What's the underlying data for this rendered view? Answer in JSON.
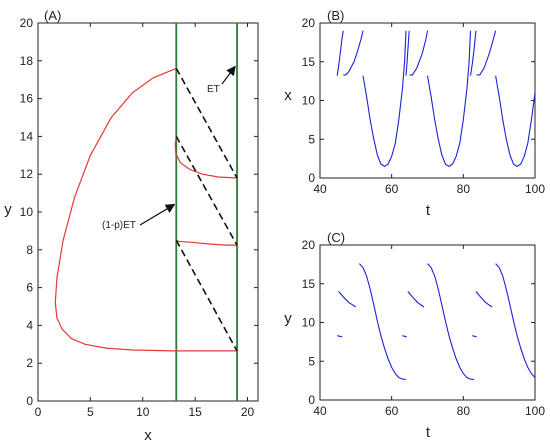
{
  "chart_data": [
    {
      "type": "line",
      "panel": "(A)",
      "xlabel": "x",
      "ylabel": "y",
      "xlim": [
        0,
        21
      ],
      "ylim": [
        0,
        20
      ],
      "xticks": [
        0,
        5,
        10,
        15,
        20
      ],
      "yticks": [
        0,
        2,
        4,
        6,
        8,
        10,
        12,
        14,
        16,
        18,
        20
      ],
      "vertical_lines": [
        {
          "x": 13.2,
          "color": "#2e7d32"
        },
        {
          "x": 19.0,
          "color": "#2e7d32"
        }
      ],
      "series": [
        {
          "color": "#e53935",
          "style": "solid",
          "points": [
            [
              13.2,
              17.6
            ],
            [
              11.0,
              17.1
            ],
            [
              9.0,
              16.3
            ],
            [
              7.0,
              15.0
            ],
            [
              5.0,
              13.0
            ],
            [
              3.5,
              10.8
            ],
            [
              2.4,
              8.5
            ],
            [
              1.8,
              6.5
            ],
            [
              1.65,
              5.2
            ],
            [
              1.8,
              4.4
            ],
            [
              2.3,
              3.8
            ],
            [
              3.2,
              3.3
            ],
            [
              4.5,
              3.0
            ],
            [
              6.5,
              2.8
            ],
            [
              9.0,
              2.7
            ],
            [
              13.0,
              2.65
            ],
            [
              19.0,
              2.65
            ]
          ]
        },
        {
          "color": "#e53935",
          "style": "solid",
          "points": [
            [
              13.2,
              14.0
            ],
            [
              13.1,
              13.6
            ],
            [
              13.15,
              13.1
            ],
            [
              13.6,
              12.6
            ],
            [
              14.5,
              12.25
            ],
            [
              15.7,
              12.0
            ],
            [
              17.2,
              11.85
            ],
            [
              19.0,
              11.8
            ]
          ]
        },
        {
          "color": "#e53935",
          "style": "solid",
          "points": [
            [
              13.2,
              8.5
            ],
            [
              13.4,
              8.45
            ],
            [
              14.5,
              8.4
            ],
            [
              16.5,
              8.3
            ],
            [
              18.0,
              8.25
            ],
            [
              19.0,
              8.25
            ]
          ]
        },
        {
          "color": "#111111",
          "style": "dashed",
          "points": [
            [
              13.2,
              17.6
            ],
            [
              19.0,
              11.8
            ]
          ]
        },
        {
          "color": "#111111",
          "style": "dashed",
          "points": [
            [
              13.2,
              14.0
            ],
            [
              19.0,
              8.25
            ]
          ]
        },
        {
          "color": "#111111",
          "style": "dashed",
          "points": [
            [
              13.2,
              8.5
            ],
            [
              19.0,
              2.65
            ]
          ]
        }
      ],
      "annotations": [
        {
          "text": "ET",
          "arrow_to": [
            19.0,
            17.8
          ]
        },
        {
          "text": "(1-p)ET",
          "arrow_to": [
            13.2,
            10.5
          ]
        }
      ]
    },
    {
      "type": "line",
      "panel": "(B)",
      "xlabel": "t",
      "ylabel": "x",
      "xlim": [
        40,
        100
      ],
      "ylim": [
        0,
        20
      ],
      "xticks": [
        40,
        60,
        80,
        100
      ],
      "yticks": [
        0,
        5,
        10,
        15,
        20
      ],
      "color": "#1a23d6",
      "segments": [
        [
          [
            44.8,
            13.2
          ],
          [
            45.3,
            14.8
          ],
          [
            45.8,
            16.7
          ],
          [
            46.2,
            18.2
          ],
          [
            46.5,
            19.0
          ]
        ],
        [
          [
            46.5,
            13.3
          ],
          [
            47.2,
            13.3
          ],
          [
            48.0,
            13.7
          ],
          [
            49.5,
            15.0
          ],
          [
            50.5,
            16.4
          ],
          [
            51.5,
            18.0
          ],
          [
            52.0,
            19.0
          ]
        ],
        [
          [
            52.0,
            13.2
          ],
          [
            53.0,
            10.5
          ],
          [
            54.0,
            7.5
          ],
          [
            55.0,
            5.0
          ],
          [
            56.0,
            3.0
          ],
          [
            57.0,
            1.8
          ],
          [
            58.0,
            1.5
          ],
          [
            59.0,
            1.8
          ],
          [
            60.0,
            2.8
          ],
          [
            61.0,
            4.5
          ],
          [
            62.0,
            7.5
          ],
          [
            63.0,
            11.5
          ],
          [
            63.6,
            15.0
          ],
          [
            64.0,
            19.0
          ]
        ],
        [
          [
            64.0,
            13.2
          ],
          [
            64.3,
            15.0
          ],
          [
            64.6,
            17.0
          ],
          [
            64.9,
            19.0
          ]
        ],
        [
          [
            65.0,
            13.3
          ],
          [
            65.8,
            13.3
          ],
          [
            67.0,
            14.2
          ],
          [
            68.5,
            16.0
          ],
          [
            69.5,
            17.8
          ],
          [
            70.0,
            19.0
          ]
        ],
        [
          [
            70.0,
            13.2
          ],
          [
            71.0,
            10.5
          ],
          [
            72.0,
            7.5
          ],
          [
            73.0,
            5.0
          ],
          [
            74.0,
            3.0
          ],
          [
            75.0,
            1.8
          ],
          [
            76.0,
            1.5
          ],
          [
            77.0,
            1.8
          ],
          [
            78.0,
            2.8
          ],
          [
            79.0,
            4.5
          ],
          [
            80.0,
            7.5
          ],
          [
            81.0,
            11.5
          ],
          [
            81.6,
            15.0
          ],
          [
            82.0,
            19.0
          ]
        ],
        [
          [
            82.0,
            13.2
          ],
          [
            82.6,
            15.0
          ],
          [
            83.1,
            17.0
          ],
          [
            83.5,
            19.0
          ]
        ],
        [
          [
            83.7,
            13.3
          ],
          [
            84.6,
            13.3
          ],
          [
            85.8,
            14.2
          ],
          [
            87.2,
            16.0
          ],
          [
            88.3,
            17.8
          ],
          [
            89.0,
            19.0
          ]
        ],
        [
          [
            89.0,
            13.2
          ],
          [
            90.0,
            10.5
          ],
          [
            91.0,
            7.5
          ],
          [
            92.0,
            5.0
          ],
          [
            93.0,
            3.0
          ],
          [
            94.0,
            1.8
          ],
          [
            95.0,
            1.5
          ],
          [
            96.0,
            1.8
          ],
          [
            97.0,
            2.8
          ],
          [
            98.0,
            4.5
          ],
          [
            99.0,
            7.5
          ],
          [
            100.0,
            11.0
          ]
        ]
      ]
    },
    {
      "type": "line",
      "panel": "(C)",
      "xlabel": "t",
      "ylabel": "y",
      "xlim": [
        40,
        100
      ],
      "ylim": [
        0,
        20
      ],
      "xticks": [
        40,
        60,
        80,
        100
      ],
      "yticks": [
        0,
        5,
        10,
        15,
        20
      ],
      "color": "#1a23d6",
      "segments": [
        [
          [
            44.8,
            8.3
          ],
          [
            46.2,
            8.15
          ]
        ],
        [
          [
            45.2,
            14.0
          ],
          [
            46.5,
            13.3
          ],
          [
            48.0,
            12.6
          ],
          [
            50.0,
            12.0
          ]
        ],
        [
          [
            51.0,
            17.6
          ],
          [
            52.0,
            17.1
          ],
          [
            53.0,
            16.0
          ],
          [
            54.0,
            14.3
          ],
          [
            55.0,
            12.3
          ],
          [
            56.0,
            10.2
          ],
          [
            57.0,
            8.3
          ],
          [
            58.0,
            6.7
          ],
          [
            59.0,
            5.3
          ],
          [
            60.0,
            4.2
          ],
          [
            61.0,
            3.4
          ],
          [
            62.0,
            2.9
          ],
          [
            63.0,
            2.7
          ],
          [
            64.0,
            2.65
          ]
        ],
        [
          [
            63.0,
            8.3
          ],
          [
            64.2,
            8.15
          ]
        ],
        [
          [
            64.5,
            14.0
          ],
          [
            65.8,
            13.3
          ],
          [
            67.2,
            12.6
          ],
          [
            69.0,
            12.0
          ]
        ],
        [
          [
            70.0,
            17.6
          ],
          [
            71.0,
            17.1
          ],
          [
            72.0,
            16.0
          ],
          [
            73.0,
            14.3
          ],
          [
            74.0,
            12.3
          ],
          [
            75.0,
            10.2
          ],
          [
            76.0,
            8.3
          ],
          [
            77.0,
            6.7
          ],
          [
            78.0,
            5.3
          ],
          [
            79.0,
            4.2
          ],
          [
            80.0,
            3.4
          ],
          [
            81.0,
            2.9
          ],
          [
            82.0,
            2.7
          ],
          [
            83.0,
            2.65
          ]
        ],
        [
          [
            82.5,
            8.3
          ],
          [
            83.7,
            8.15
          ]
        ],
        [
          [
            83.5,
            14.0
          ],
          [
            84.8,
            13.3
          ],
          [
            86.2,
            12.6
          ],
          [
            88.0,
            12.0
          ]
        ],
        [
          [
            89.0,
            17.6
          ],
          [
            90.0,
            17.1
          ],
          [
            91.0,
            16.0
          ],
          [
            92.0,
            14.3
          ],
          [
            93.0,
            12.3
          ],
          [
            94.0,
            10.2
          ],
          [
            95.0,
            8.3
          ],
          [
            96.0,
            6.7
          ],
          [
            97.0,
            5.3
          ],
          [
            98.0,
            4.2
          ],
          [
            99.0,
            3.4
          ],
          [
            100.0,
            2.9
          ]
        ]
      ]
    }
  ]
}
